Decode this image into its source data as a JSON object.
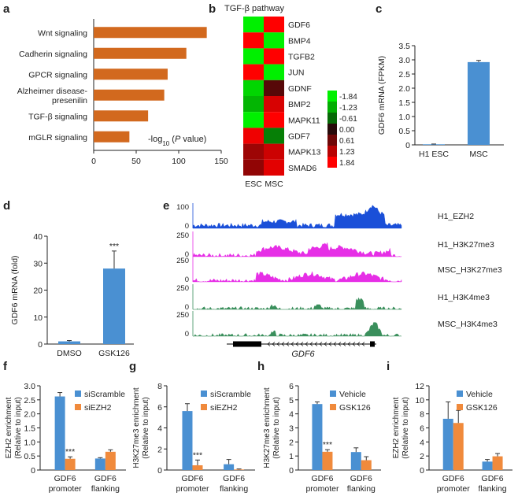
{
  "colors": {
    "orange": "#d2691e",
    "blue": "#4a90d2",
    "orange2": "#f08a3c",
    "axis": "#222222",
    "error": "#333333",
    "ezh2_track": "#1a4fd8",
    "k27_track": "#e62ee6",
    "k4_track": "#3a8f5c"
  },
  "chart_data": [
    {
      "panel": "a",
      "type": "bar",
      "orientation": "horizontal",
      "categories": [
        "Wnt signaling",
        "Cadherin signaling",
        "GPCR signaling",
        "Alzheimer disease-presenilin",
        "TGF-β signaling",
        "mGLR signaling"
      ],
      "category_lines": [
        [
          "Wnt signaling"
        ],
        [
          "Cadherin signaling"
        ],
        [
          "GPCR signaling"
        ],
        [
          "Alzheimer disease-",
          "presenilin"
        ],
        [
          "TGF-β signaling"
        ],
        [
          "mGLR signaling"
        ]
      ],
      "values": [
        133,
        109,
        87,
        83,
        64,
        42
      ],
      "xlim": [
        0,
        150
      ],
      "xticks": [
        "0",
        "50",
        "100",
        "150"
      ],
      "xlabel_main": "-log",
      "xlabel_sub": "10",
      "xlabel_paren": " (",
      "xlabel_ital": "P",
      "xlabel_end": " value)"
    },
    {
      "panel": "b",
      "type": "heatmap",
      "title": "TGF-β pathway",
      "rows": [
        "GDF6",
        "BMP4",
        "TGFB2",
        "JUN",
        "GDNF",
        "BMP2",
        "MAPK11",
        "GDF7",
        "MAPK13",
        "SMAD6"
      ],
      "columns": [
        "ESC",
        "MSC"
      ],
      "values": [
        [
          -1.84,
          1.84
        ],
        [
          1.84,
          -1.84
        ],
        [
          -1.84,
          1.84
        ],
        [
          1.84,
          -1.84
        ],
        [
          -1.6,
          0.4
        ],
        [
          -1.3,
          1.5
        ],
        [
          -1.84,
          1.84
        ],
        [
          1.7,
          -0.8
        ],
        [
          1.0,
          1.4
        ],
        [
          0.9,
          1.6
        ]
      ],
      "color_scale": [
        "-1.84",
        "-1.23",
        "-0.61",
        "0.00",
        "0.61",
        "1.23",
        "1.84"
      ],
      "scale_values": [
        -1.84,
        -1.23,
        -0.61,
        0.0,
        0.61,
        1.23,
        1.84
      ]
    },
    {
      "panel": "c",
      "type": "bar",
      "categories": [
        "H1 ESC",
        "MSC"
      ],
      "values": [
        0.02,
        2.92
      ],
      "errors": [
        0.01,
        0.06
      ],
      "ylim": [
        0,
        3.5
      ],
      "yticks": [
        "0",
        "0.5",
        "1.0",
        "1.5",
        "2.0",
        "2.5",
        "3.0",
        "3.5"
      ],
      "ylabel": "GDF6 mRNA (FPKM)"
    },
    {
      "panel": "d",
      "type": "bar",
      "categories": [
        "DMSO",
        "GSK126"
      ],
      "values": [
        1,
        28
      ],
      "errors": [
        0.3,
        6.5
      ],
      "ylim": [
        0,
        40
      ],
      "yticks": [
        "0",
        "10",
        "20",
        "30",
        "40"
      ],
      "ylabel": "GDF6 mRNA (fold)",
      "significance": [
        "",
        "***"
      ]
    },
    {
      "panel": "e",
      "type": "area",
      "tracks": [
        {
          "name": "H1_EZH2",
          "ymax": "100",
          "color_key": "ezh2_track"
        },
        {
          "name": "H1_H3K27me3",
          "ymax": "250",
          "color_key": "k27_track"
        },
        {
          "name": "MSC_H3K27me3",
          "ymax": "250",
          "color_key": "k27_track"
        },
        {
          "name": "H1_H3K4me3",
          "ymax": "250",
          "color_key": "k4_track"
        },
        {
          "name": "MSC_H3K4me3",
          "ymax": "250",
          "color_key": "k4_track"
        }
      ],
      "ymin": "0",
      "gene": "GDF6"
    },
    {
      "panel": "f",
      "type": "bar",
      "categories": [
        [
          "GDF6",
          "promoter"
        ],
        [
          "GDF6",
          "flanking"
        ]
      ],
      "series": [
        {
          "name": "siScramble",
          "values": [
            2.62,
            0.41
          ],
          "errors": [
            0.14,
            0.03
          ],
          "color_key": "blue"
        },
        {
          "name": "siEZH2",
          "values": [
            0.4,
            0.65
          ],
          "errors": [
            0.07,
            0.07
          ],
          "color_key": "orange2"
        }
      ],
      "ylim": [
        0,
        3.0
      ],
      "yticks": [
        "0",
        "0.5",
        "1.0",
        "1.5",
        "2.0",
        "2.5",
        "3.0"
      ],
      "ylabel": [
        "EZH2 enrichment",
        "(Relative to input)"
      ],
      "significance": "***"
    },
    {
      "panel": "g",
      "type": "bar",
      "categories": [
        [
          "GDF6",
          "promoter"
        ],
        [
          "GDF6",
          "flanking"
        ]
      ],
      "series": [
        {
          "name": "siScramble",
          "values": [
            5.6,
            0.55
          ],
          "errors": [
            0.7,
            0.45
          ],
          "color_key": "blue"
        },
        {
          "name": "siEZH2",
          "values": [
            0.45,
            0.05
          ],
          "errors": [
            0.5,
            0.05
          ],
          "color_key": "orange2"
        }
      ],
      "ylim": [
        0,
        8
      ],
      "yticks": [
        "0",
        "2",
        "4",
        "6",
        "8"
      ],
      "ylabel": [
        "H3K27me3 enrichment",
        "(Relative to input)"
      ],
      "significance": "***"
    },
    {
      "panel": "h",
      "type": "bar",
      "categories": [
        [
          "GDF6",
          "promoter"
        ],
        [
          "GDF6",
          "flanking"
        ]
      ],
      "series": [
        {
          "name": "Vehicle",
          "values": [
            4.7,
            1.28
          ],
          "errors": [
            0.15,
            0.3
          ],
          "color_key": "blue"
        },
        {
          "name": "GSK126",
          "values": [
            1.3,
            0.7
          ],
          "errors": [
            0.15,
            0.25
          ],
          "color_key": "orange2"
        }
      ],
      "ylim": [
        0,
        6
      ],
      "yticks": [
        "0",
        "1",
        "2",
        "3",
        "4",
        "5",
        "6"
      ],
      "ylabel": [
        "H3K27me3 enrichment",
        "(Relative to input)"
      ],
      "significance": "***"
    },
    {
      "panel": "i",
      "type": "bar",
      "categories": [
        [
          "GDF6",
          "promoter"
        ],
        [
          "GDF6",
          "flanking"
        ]
      ],
      "series": [
        {
          "name": "Vehicle",
          "values": [
            7.3,
            1.2
          ],
          "errors": [
            2.4,
            0.3
          ],
          "color_key": "blue"
        },
        {
          "name": "GSK126",
          "values": [
            6.7,
            1.95
          ],
          "errors": [
            1.8,
            0.4
          ],
          "color_key": "orange2"
        }
      ],
      "ylim": [
        0,
        12
      ],
      "yticks": [
        "0",
        "2",
        "4",
        "6",
        "8",
        "10",
        "12"
      ],
      "ylabel": [
        "EZH2 enrichment",
        "(Relative to input)"
      ],
      "significance": ""
    }
  ]
}
